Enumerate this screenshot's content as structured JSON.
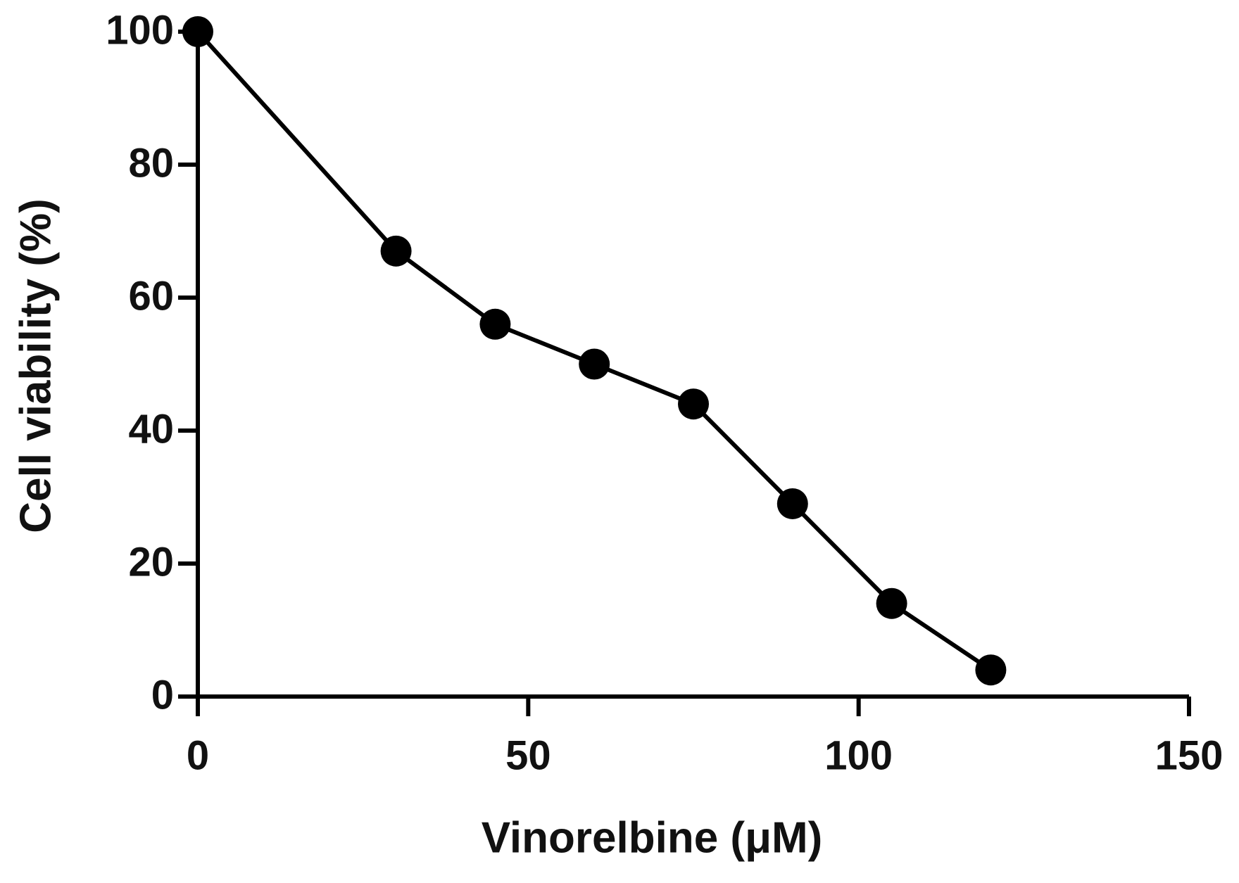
{
  "chart_data": {
    "type": "line",
    "x_label": "Vinorelbine (μM)",
    "y_label": "Cell viability (%)",
    "x": [
      0,
      30,
      45,
      60,
      75,
      90,
      105,
      120
    ],
    "series": [
      {
        "name": "Cell viability",
        "color": "#000000",
        "values": [
          100,
          67,
          56,
          50,
          44,
          29,
          14,
          4
        ]
      }
    ],
    "xlim": [
      0,
      150
    ],
    "ylim": [
      0,
      100
    ],
    "xticks": [
      0,
      50,
      100,
      150
    ],
    "yticks": [
      0,
      20,
      40,
      60,
      80,
      100
    ],
    "grid": false
  }
}
